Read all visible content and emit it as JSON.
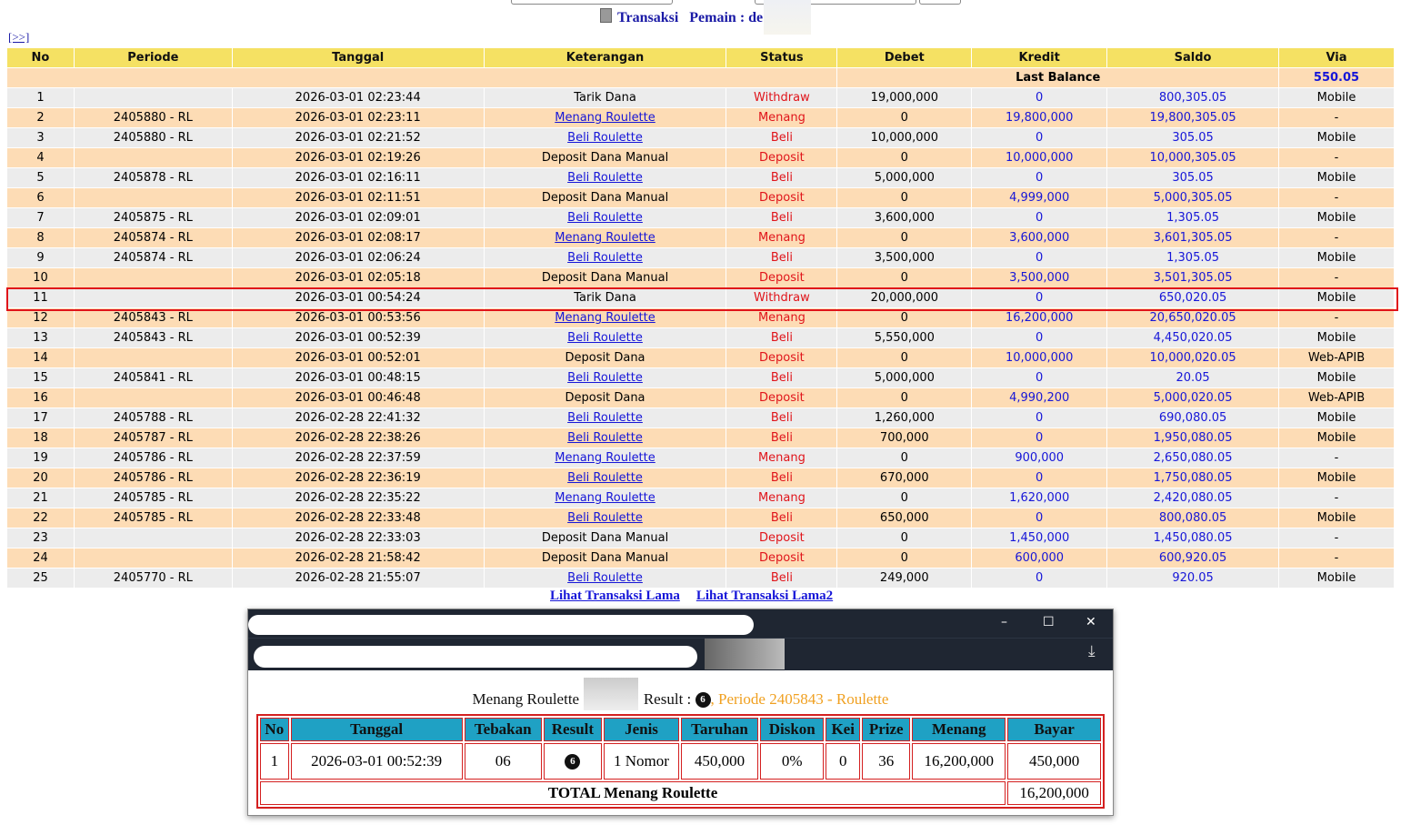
{
  "page": {
    "title": "Transaksi",
    "player_label": "Pemain : de",
    "nav_link": "[>>]"
  },
  "table": {
    "headers": [
      "No",
      "Periode",
      "Tanggal",
      "Keterangan",
      "Status",
      "Debet",
      "Kredit",
      "Saldo",
      "Via"
    ],
    "last_balance_label": "Last Balance",
    "last_balance_value": "550.05",
    "rows": [
      [
        "1",
        "",
        "2026-03-01 02:23:44",
        "Tarik Dana",
        "Withdraw",
        "19,000,000",
        "0",
        "800,305.05",
        "Mobile"
      ],
      [
        "2",
        "2405880 - RL",
        "2026-03-01 02:23:11",
        "Menang Roulette",
        "Menang",
        "0",
        "19,800,000",
        "19,800,305.05",
        "-"
      ],
      [
        "3",
        "2405880 - RL",
        "2026-03-01 02:21:52",
        "Beli Roulette",
        "Beli",
        "10,000,000",
        "0",
        "305.05",
        "Mobile"
      ],
      [
        "4",
        "",
        "2026-03-01 02:19:26",
        "Deposit Dana Manual",
        "Deposit",
        "0",
        "10,000,000",
        "10,000,305.05",
        "-"
      ],
      [
        "5",
        "2405878 - RL",
        "2026-03-01 02:16:11",
        "Beli Roulette",
        "Beli",
        "5,000,000",
        "0",
        "305.05",
        "Mobile"
      ],
      [
        "6",
        "",
        "2026-03-01 02:11:51",
        "Deposit Dana Manual",
        "Deposit",
        "0",
        "4,999,000",
        "5,000,305.05",
        "-"
      ],
      [
        "7",
        "2405875 - RL",
        "2026-03-01 02:09:01",
        "Beli Roulette",
        "Beli",
        "3,600,000",
        "0",
        "1,305.05",
        "Mobile"
      ],
      [
        "8",
        "2405874 - RL",
        "2026-03-01 02:08:17",
        "Menang Roulette",
        "Menang",
        "0",
        "3,600,000",
        "3,601,305.05",
        "-"
      ],
      [
        "9",
        "2405874 - RL",
        "2026-03-01 02:06:24",
        "Beli Roulette",
        "Beli",
        "3,500,000",
        "0",
        "1,305.05",
        "Mobile"
      ],
      [
        "10",
        "",
        "2026-03-01 02:05:18",
        "Deposit Dana Manual",
        "Deposit",
        "0",
        "3,500,000",
        "3,501,305.05",
        "-"
      ],
      [
        "11",
        "",
        "2026-03-01 00:54:24",
        "Tarik Dana",
        "Withdraw",
        "20,000,000",
        "0",
        "650,020.05",
        "Mobile"
      ],
      [
        "12",
        "2405843 - RL",
        "2026-03-01 00:53:56",
        "Menang Roulette",
        "Menang",
        "0",
        "16,200,000",
        "20,650,020.05",
        "-"
      ],
      [
        "13",
        "2405843 - RL",
        "2026-03-01 00:52:39",
        "Beli Roulette",
        "Beli",
        "5,550,000",
        "0",
        "4,450,020.05",
        "Mobile"
      ],
      [
        "14",
        "",
        "2026-03-01 00:52:01",
        "Deposit Dana",
        "Deposit",
        "0",
        "10,000,000",
        "10,000,020.05",
        "Web-APIB"
      ],
      [
        "15",
        "2405841 - RL",
        "2026-03-01 00:48:15",
        "Beli Roulette",
        "Beli",
        "5,000,000",
        "0",
        "20.05",
        "Mobile"
      ],
      [
        "16",
        "",
        "2026-03-01 00:46:48",
        "Deposit Dana",
        "Deposit",
        "0",
        "4,990,200",
        "5,000,020.05",
        "Web-APIB"
      ],
      [
        "17",
        "2405788 - RL",
        "2026-02-28 22:41:32",
        "Beli Roulette",
        "Beli",
        "1,260,000",
        "0",
        "690,080.05",
        "Mobile"
      ],
      [
        "18",
        "2405787 - RL",
        "2026-02-28 22:38:26",
        "Beli Roulette",
        "Beli",
        "700,000",
        "0",
        "1,950,080.05",
        "Mobile"
      ],
      [
        "19",
        "2405786 - RL",
        "2026-02-28 22:37:59",
        "Menang Roulette",
        "Menang",
        "0",
        "900,000",
        "2,650,080.05",
        "-"
      ],
      [
        "20",
        "2405786 - RL",
        "2026-02-28 22:36:19",
        "Beli Roulette",
        "Beli",
        "670,000",
        "0",
        "1,750,080.05",
        "Mobile"
      ],
      [
        "21",
        "2405785 - RL",
        "2026-02-28 22:35:22",
        "Menang Roulette",
        "Menang",
        "0",
        "1,620,000",
        "2,420,080.05",
        "-"
      ],
      [
        "22",
        "2405785 - RL",
        "2026-02-28 22:33:48",
        "Beli Roulette",
        "Beli",
        "650,000",
        "0",
        "800,080.05",
        "Mobile"
      ],
      [
        "23",
        "",
        "2026-02-28 22:33:03",
        "Deposit Dana Manual",
        "Deposit",
        "0",
        "1,450,000",
        "1,450,080.05",
        "-"
      ],
      [
        "24",
        "",
        "2026-02-28 21:58:42",
        "Deposit Dana Manual",
        "Deposit",
        "0",
        "600,000",
        "600,920.05",
        "-"
      ],
      [
        "25",
        "2405770 - RL",
        "2026-02-28 21:55:07",
        "Beli Roulette",
        "Beli",
        "249,000",
        "0",
        "920.05",
        "Mobile"
      ]
    ]
  },
  "links": {
    "old": "Lihat Transaksi Lama",
    "old2": "Lihat Transaksi Lama2"
  },
  "popup": {
    "heading_prefix": "Menang Roulette d",
    "result_label": "Result :",
    "result_ball": "6",
    "periode": ", Periode 2405843 - Roulette",
    "headers": [
      "No",
      "Tanggal",
      "Tebakan",
      "Result",
      "Jenis",
      "Taruhan",
      "Diskon",
      "Kei",
      "Prize",
      "Menang",
      "Bayar"
    ],
    "row": {
      "no": "1",
      "tanggal": "2026-03-01 00:52:39",
      "tebakan": "06",
      "result": "6",
      "jenis": "1 Nomor",
      "taruhan": "450,000",
      "diskon": "0%",
      "kei": "0",
      "prize": "36",
      "menang": "16,200,000",
      "bayar": "450,000"
    },
    "total_label": "TOTAL  Menang Roulette",
    "total_value": "16,200,000",
    "window_buttons": {
      "minimize": "–",
      "maximize": "☐",
      "close": "✕"
    }
  },
  "colors": {
    "header": "#f5e163",
    "row_alt": "#fddcb5",
    "status": "#e0141a",
    "amount": "#1616d8",
    "popup_header": "#1fa1c4"
  }
}
